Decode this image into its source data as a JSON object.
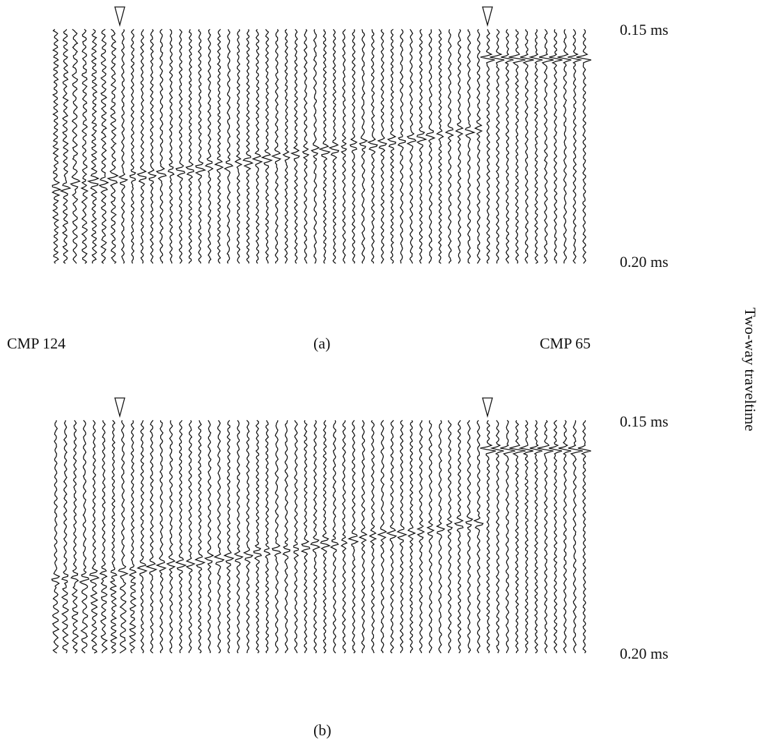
{
  "panels": [
    {
      "label": "(a)",
      "time_top": "0.15 ms",
      "time_bottom": "0.20 ms"
    },
    {
      "label": "(b)",
      "time_top": "0.15 ms",
      "time_bottom": "0.20 ms"
    }
  ],
  "cmp_left": "CMP 124",
  "cmp_right": "CMP 65",
  "axis_label": "Two-way traveltime"
}
